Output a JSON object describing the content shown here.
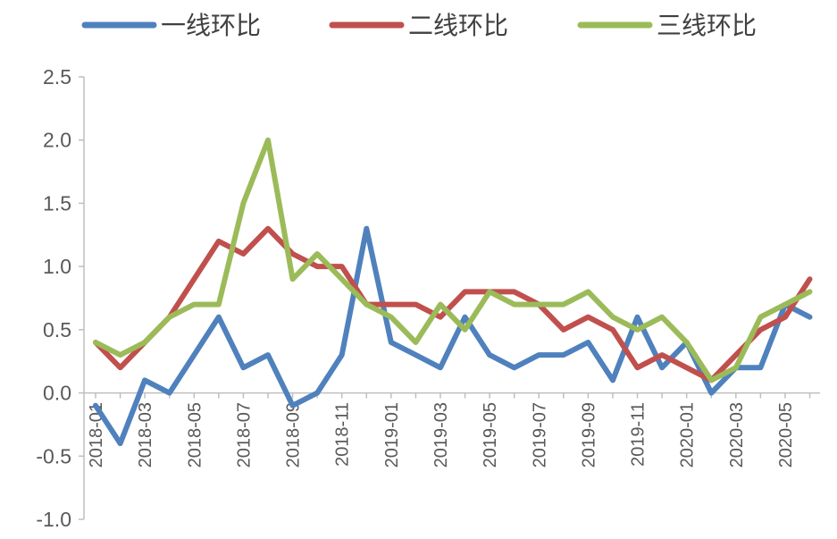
{
  "chart_data": {
    "type": "line",
    "title": "",
    "xlabel": "",
    "ylabel": "",
    "ylim": [
      -1.0,
      2.5
    ],
    "yticks": [
      "2.5",
      "2.0",
      "1.5",
      "1.0",
      "0.5",
      "0.0",
      "-0.5",
      "-1.0"
    ],
    "x": [
      "2018-01",
      "2018-02",
      "2018-03",
      "2018-04",
      "2018-05",
      "2018-06",
      "2018-07",
      "2018-08",
      "2018-09",
      "2018-10",
      "2018-11",
      "2018-12",
      "2019-01",
      "2019-02",
      "2019-03",
      "2019-04",
      "2019-05",
      "2019-06",
      "2019-07",
      "2019-08",
      "2019-09",
      "2019-10",
      "2019-11",
      "2019-12",
      "2020-01",
      "2020-02",
      "2020-03",
      "2020-04",
      "2020-05",
      "2020-06"
    ],
    "xtick_labels": [
      "2018-01",
      "2018-03",
      "2018-05",
      "2018-07",
      "2018-09",
      "2018-11",
      "2019-01",
      "2019-03",
      "2019-05",
      "2019-07",
      "2019-09",
      "2019-11",
      "2020-01",
      "2020-03",
      "2020-05"
    ],
    "legend_position": "top",
    "grid": false,
    "series": [
      {
        "name": "一线环比",
        "color": "#4F81BD",
        "values": [
          -0.1,
          -0.4,
          0.1,
          0.0,
          0.3,
          0.6,
          0.2,
          0.3,
          -0.1,
          0.0,
          0.3,
          1.3,
          0.4,
          0.3,
          0.2,
          0.6,
          0.3,
          0.2,
          0.3,
          0.3,
          0.4,
          0.1,
          0.6,
          0.2,
          0.4,
          0.0,
          0.2,
          0.2,
          0.7,
          0.6
        ]
      },
      {
        "name": "二线环比",
        "color": "#C0504D",
        "values": [
          0.4,
          0.2,
          0.4,
          0.6,
          0.9,
          1.2,
          1.1,
          1.3,
          1.1,
          1.0,
          1.0,
          0.7,
          0.7,
          0.7,
          0.6,
          0.8,
          0.8,
          0.8,
          0.7,
          0.5,
          0.6,
          0.5,
          0.2,
          0.3,
          0.2,
          0.1,
          0.3,
          0.5,
          0.6,
          0.9
        ]
      },
      {
        "name": "三线环比",
        "color": "#9BBB59",
        "values": [
          0.4,
          0.3,
          0.4,
          0.6,
          0.7,
          0.7,
          1.5,
          2.0,
          0.9,
          1.1,
          0.9,
          0.7,
          0.6,
          0.4,
          0.7,
          0.5,
          0.8,
          0.7,
          0.7,
          0.7,
          0.8,
          0.6,
          0.5,
          0.6,
          0.4,
          0.1,
          0.2,
          0.6,
          0.7,
          0.8
        ]
      }
    ]
  }
}
